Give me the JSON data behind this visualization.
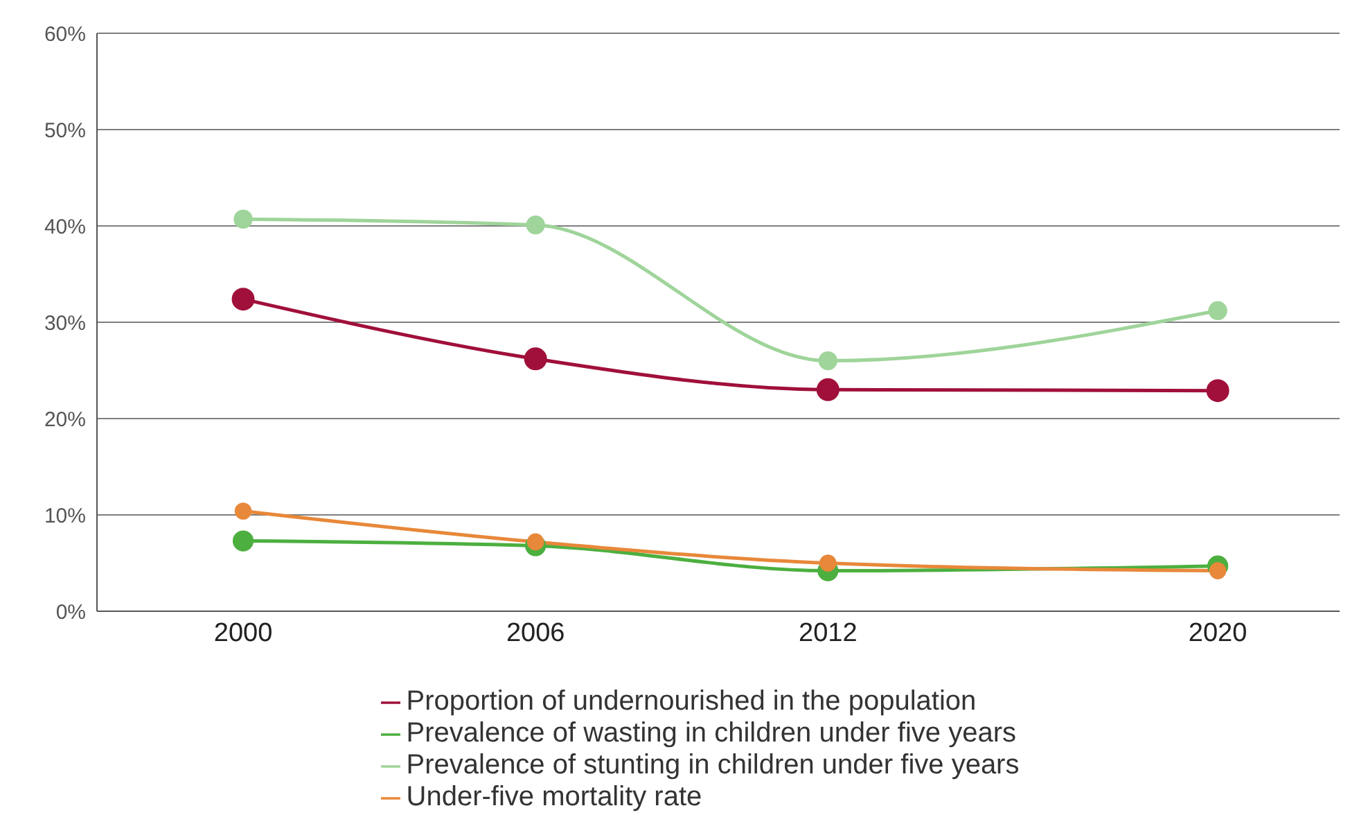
{
  "chart_data": {
    "type": "line",
    "x": [
      2000,
      2006,
      2012,
      2020
    ],
    "xlim": [
      1997,
      2022.5
    ],
    "xticks": [
      2000,
      2006,
      2012,
      2020
    ],
    "ylim": [
      0,
      60
    ],
    "yticks": [
      {
        "value": 0,
        "label": "0%"
      },
      {
        "value": 10,
        "label": "10%"
      },
      {
        "value": 20,
        "label": "20%"
      },
      {
        "value": 30,
        "label": "30%"
      },
      {
        "value": 40,
        "label": "40%"
      },
      {
        "value": 50,
        "label": "50%"
      },
      {
        "value": 60,
        "label": "60%"
      }
    ],
    "grid": "y",
    "legend": "bottom",
    "marker": "circle",
    "line_style": "solid",
    "series": [
      {
        "name": "Proportion of undernourished in the population",
        "color": "#a0103a",
        "values": [
          32.4,
          26.2,
          23.0,
          22.9
        ]
      },
      {
        "name": "Prevalence of wasting in children under five years",
        "color": "#4caf3f",
        "values": [
          7.3,
          6.8,
          4.2,
          4.7
        ]
      },
      {
        "name": "Prevalence of stunting in children under five years",
        "color": "#9fd49a",
        "values": [
          40.7,
          40.1,
          26.0,
          31.2
        ]
      },
      {
        "name": "Under-five mortality rate",
        "color": "#e8883a",
        "values": [
          10.4,
          7.2,
          5.0,
          4.2
        ]
      }
    ]
  }
}
